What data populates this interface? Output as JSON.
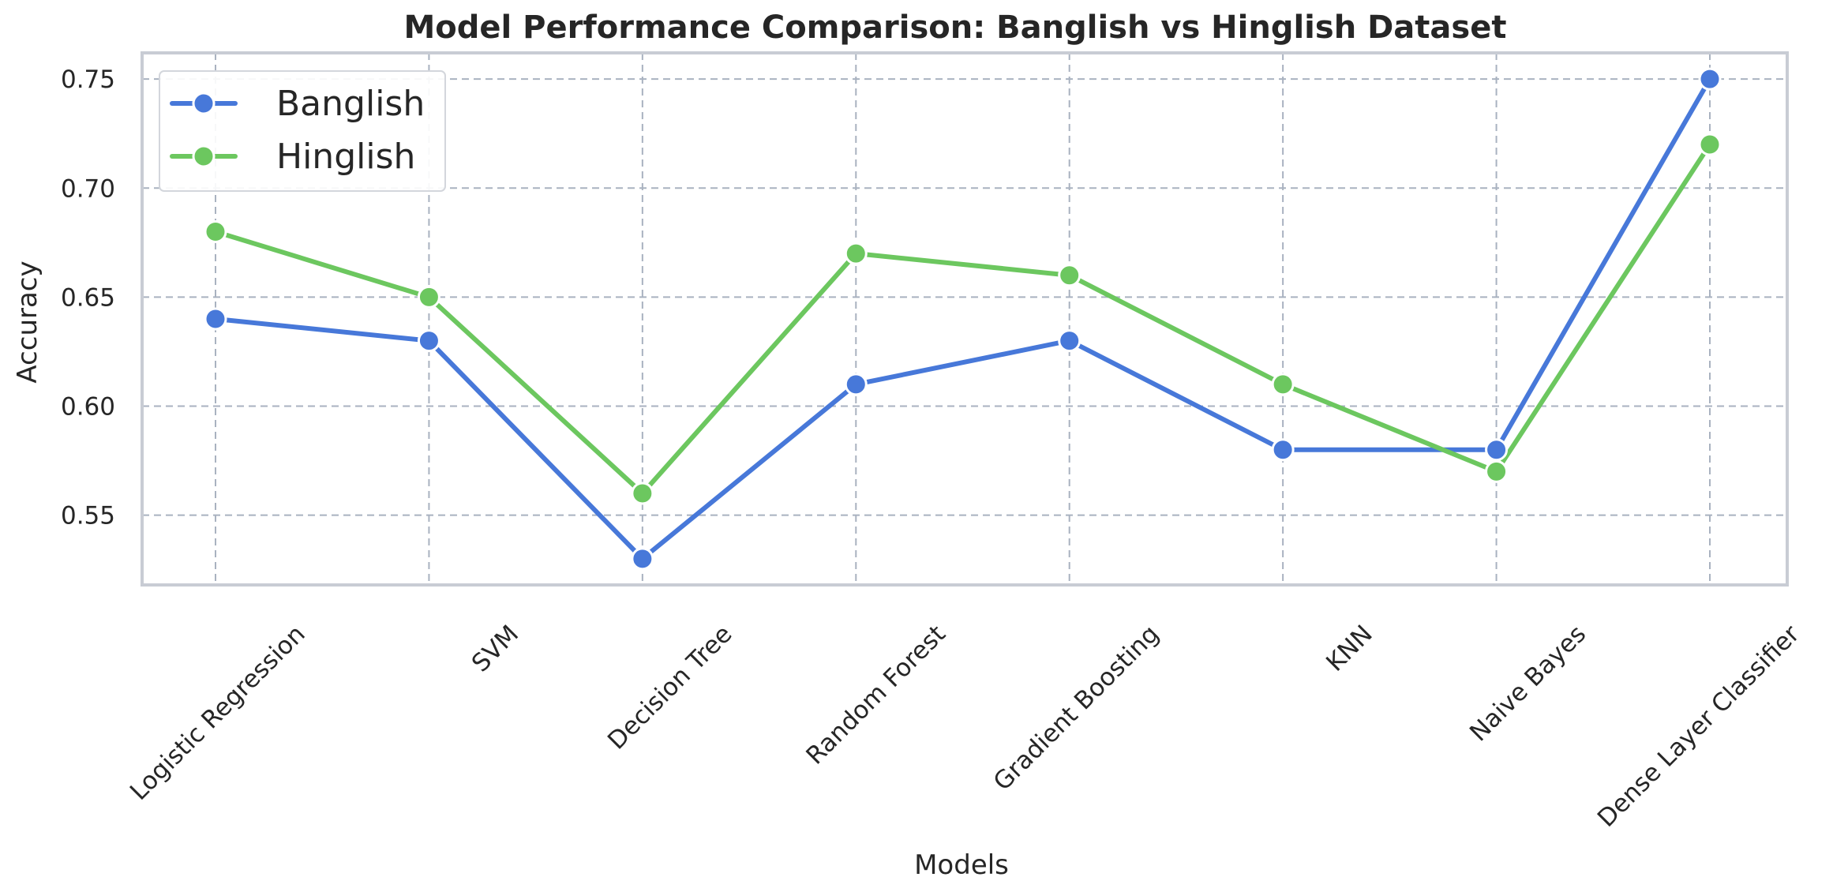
{
  "chart_data": {
    "type": "line",
    "title": "Model Performance Comparison: Banglish vs Hinglish Dataset",
    "xlabel": "Models",
    "ylabel": "Accuracy",
    "categories": [
      "Logistic Regression",
      "SVM",
      "Decision Tree",
      "Random Forest",
      "Gradient Boosting",
      "KNN",
      "Naive Bayes",
      "Dense Layer Classifier"
    ],
    "ylim": [
      0.518,
      0.762
    ],
    "yticks": [
      "0.55",
      "0.60",
      "0.65",
      "0.70",
      "0.75"
    ],
    "grid": true,
    "legend_position": "top-left",
    "series": [
      {
        "name": "Banglish",
        "color": "#4778d9",
        "values": [
          0.64,
          0.63,
          0.53,
          0.61,
          0.63,
          0.58,
          0.58,
          0.75
        ]
      },
      {
        "name": "Hinglish",
        "color": "#6cc75f",
        "values": [
          0.68,
          0.65,
          0.56,
          0.67,
          0.66,
          0.61,
          0.57,
          0.72
        ]
      }
    ]
  }
}
